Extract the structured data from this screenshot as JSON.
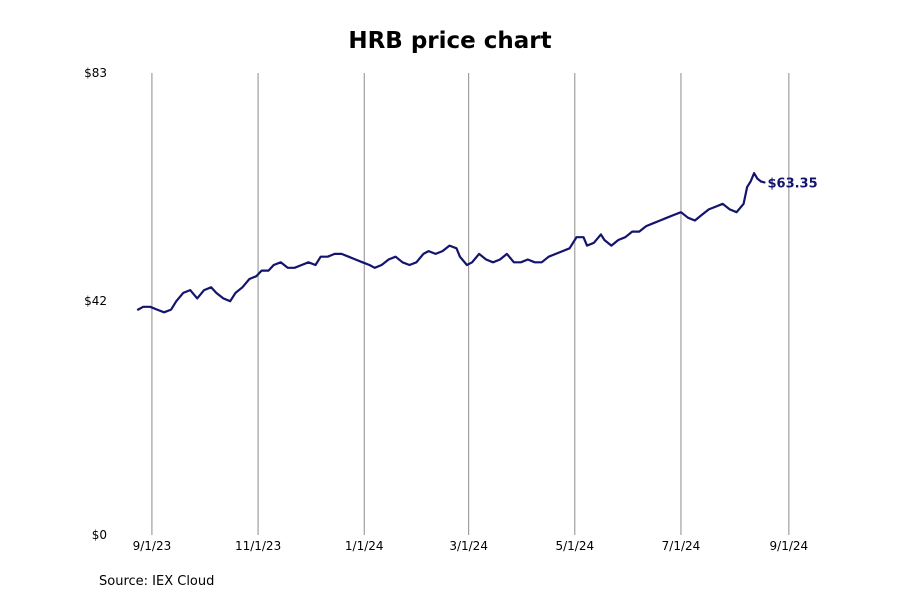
{
  "chart_data": {
    "type": "line",
    "title": "HRB price chart",
    "source": "Source: IEX Cloud",
    "line_color": "#14146e",
    "grid_color": "#8c8c8c",
    "grid": "vertical",
    "ylim": [
      0,
      83
    ],
    "xlim": [
      "2023-08-24",
      "2024-09-12"
    ],
    "y_ticks": [
      {
        "value": 0,
        "label": "$0"
      },
      {
        "value": 42,
        "label": "$42"
      },
      {
        "value": 83,
        "label": "$83"
      }
    ],
    "x_ticks": [
      {
        "date": "2023-09-01",
        "label": "9/1/23"
      },
      {
        "date": "2023-11-01",
        "label": "11/1/23"
      },
      {
        "date": "2024-01-01",
        "label": "1/1/24"
      },
      {
        "date": "2024-03-01",
        "label": "3/1/24"
      },
      {
        "date": "2024-05-01",
        "label": "5/1/24"
      },
      {
        "date": "2024-07-01",
        "label": "7/1/24"
      },
      {
        "date": "2024-09-01",
        "label": "9/1/24"
      }
    ],
    "end_label": "$63.35",
    "series": [
      {
        "x": [
          "2023-08-24",
          "2023-08-27",
          "2023-08-31",
          "2023-09-04",
          "2023-09-08",
          "2023-09-12",
          "2023-09-15",
          "2023-09-19",
          "2023-09-23",
          "2023-09-27",
          "2023-10-01",
          "2023-10-05",
          "2023-10-08",
          "2023-10-12",
          "2023-10-16",
          "2023-10-19",
          "2023-10-23",
          "2023-10-27",
          "2023-10-31",
          "2023-11-03",
          "2023-11-07",
          "2023-11-10",
          "2023-11-14",
          "2023-11-18",
          "2023-11-22",
          "2023-11-26",
          "2023-11-30",
          "2023-12-04",
          "2023-12-07",
          "2023-12-11",
          "2023-12-15",
          "2023-12-19",
          "2023-12-23",
          "2023-12-27",
          "2023-12-31",
          "2024-01-04",
          "2024-01-07",
          "2024-01-11",
          "2024-01-15",
          "2024-01-19",
          "2024-01-23",
          "2024-01-27",
          "2024-01-31",
          "2024-02-04",
          "2024-02-07",
          "2024-02-11",
          "2024-02-15",
          "2024-02-19",
          "2024-02-23",
          "2024-02-25",
          "2024-02-29",
          "2024-03-03",
          "2024-03-07",
          "2024-03-11",
          "2024-03-15",
          "2024-03-19",
          "2024-03-23",
          "2024-03-27",
          "2024-03-31",
          "2024-04-04",
          "2024-04-08",
          "2024-04-12",
          "2024-04-16",
          "2024-04-20",
          "2024-04-24",
          "2024-04-28",
          "2024-05-02",
          "2024-05-06",
          "2024-05-08",
          "2024-05-12",
          "2024-05-16",
          "2024-05-18",
          "2024-05-22",
          "2024-05-26",
          "2024-05-30",
          "2024-06-03",
          "2024-06-07",
          "2024-06-11",
          "2024-06-15",
          "2024-06-19",
          "2024-06-23",
          "2024-06-27",
          "2024-07-01",
          "2024-07-05",
          "2024-07-09",
          "2024-07-13",
          "2024-07-17",
          "2024-07-21",
          "2024-07-25",
          "2024-07-29",
          "2024-08-02",
          "2024-08-06",
          "2024-08-08",
          "2024-08-10",
          "2024-08-12",
          "2024-08-14",
          "2024-08-16",
          "2024-08-18"
        ],
        "y": [
          40.5,
          41.0,
          41.0,
          40.5,
          40.0,
          40.5,
          42.0,
          43.5,
          44.0,
          42.5,
          44.0,
          44.5,
          43.5,
          42.5,
          42.0,
          43.5,
          44.5,
          46.0,
          46.5,
          47.5,
          47.5,
          48.5,
          49.0,
          48.0,
          48.0,
          48.5,
          49.0,
          48.5,
          50.0,
          50.0,
          50.5,
          50.5,
          50.0,
          49.5,
          49.0,
          48.5,
          48.0,
          48.5,
          49.5,
          50.0,
          49.0,
          48.5,
          49.0,
          50.5,
          51.0,
          50.5,
          51.0,
          52.0,
          51.5,
          50.0,
          48.5,
          49.0,
          50.5,
          49.5,
          49.0,
          49.5,
          50.5,
          49.0,
          49.0,
          49.5,
          49.0,
          49.0,
          50.0,
          50.5,
          51.0,
          51.5,
          53.5,
          53.5,
          52.0,
          52.5,
          54.0,
          53.0,
          52.0,
          53.0,
          53.5,
          54.5,
          54.5,
          55.5,
          56.0,
          56.5,
          57.0,
          57.5,
          58.0,
          57.0,
          56.5,
          57.5,
          58.5,
          59.0,
          59.5,
          58.5,
          58.0,
          59.5,
          62.5,
          63.5,
          65.0,
          64.0,
          63.5,
          63.35
        ]
      }
    ]
  }
}
